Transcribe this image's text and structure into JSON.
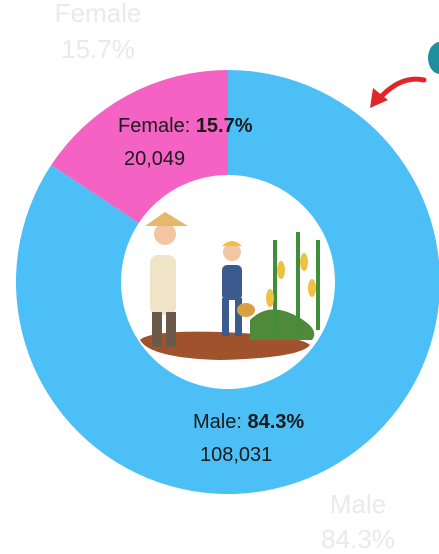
{
  "chart_data": {
    "type": "donut",
    "categories": [
      "Female",
      "Male"
    ],
    "data_labels": [
      "Female:",
      "Male:"
    ],
    "values": [
      15.7,
      84.3
    ],
    "value_labels": [
      "15.7%",
      "84.3%"
    ],
    "counts": [
      {
        "value": 20049,
        "label": "20,049"
      },
      {
        "value": 108031,
        "label": "108,031"
      }
    ],
    "colors": [
      "#f462c3",
      "#4bbff6"
    ]
  }
}
